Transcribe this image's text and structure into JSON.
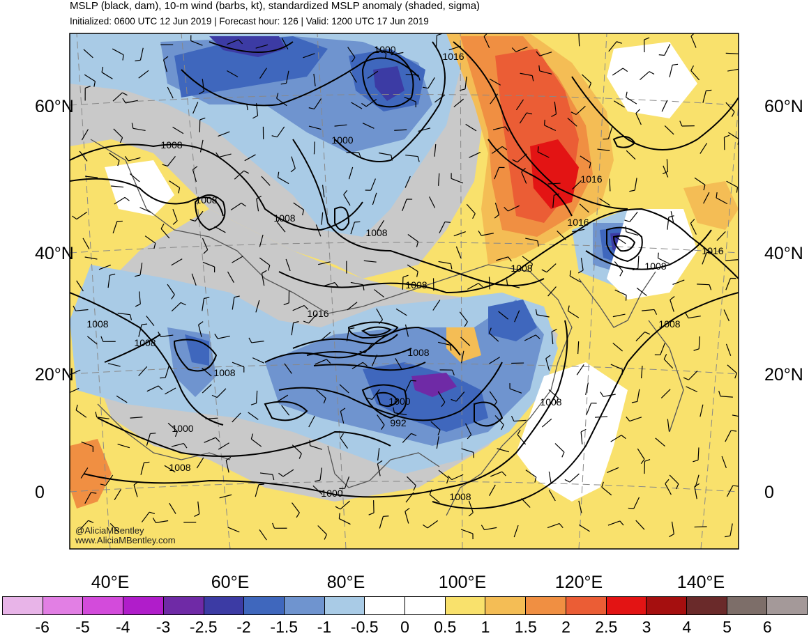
{
  "header": {
    "title": "MSLP (black, dam), 10-m wind (barbs, kt), standardized MSLP anomaly (shaded, sigma)",
    "subtitle": "Initialized: 0600 UTC 12 Jun 2019 | Forecast hour: 126 | Valid: 1200 UTC 17 Jun 2019"
  },
  "map": {
    "lat_labels": [
      "60°N",
      "40°N",
      "20°N",
      "0"
    ],
    "lon_labels": [
      "40°E",
      "60°E",
      "80°E",
      "100°E",
      "120°E",
      "140°E"
    ],
    "contour_labels": [
      "1000",
      "1016",
      "1008",
      "1000",
      "1008",
      "1016",
      "1008",
      "1008",
      "1016",
      "1016",
      "1008",
      "1008",
      "1008",
      "1016",
      "1008",
      "1008",
      "1008",
      "1000",
      "1008",
      "1000",
      "992",
      "1008",
      "1000",
      "1008",
      "1008",
      "1008"
    ],
    "credit_line1": "@AliciaMBentley",
    "credit_line2": "www.AliciaMBentley.com"
  },
  "legend": {
    "colors": [
      "#e8b4e8",
      "#e27fe4",
      "#d34bdb",
      "#b01dca",
      "#6f2aa6",
      "#3c3ba4",
      "#3f67bd",
      "#6f94cf",
      "#a9cbe6",
      "#ffffff",
      "#ffffff",
      "#f9e16c",
      "#f4bd55",
      "#f08f42",
      "#eb5d35",
      "#e31414",
      "#a50f0f",
      "#6a2a2a",
      "#7d6e69",
      "#a49999"
    ],
    "ticks": [
      "-6",
      "-5",
      "-4",
      "-3",
      "-2.5",
      "-2",
      "-1.5",
      "-1",
      "-0.5",
      "0",
      "0.5",
      "1",
      "1.5",
      "2",
      "2.5",
      "3",
      "4",
      "5",
      "6"
    ]
  }
}
